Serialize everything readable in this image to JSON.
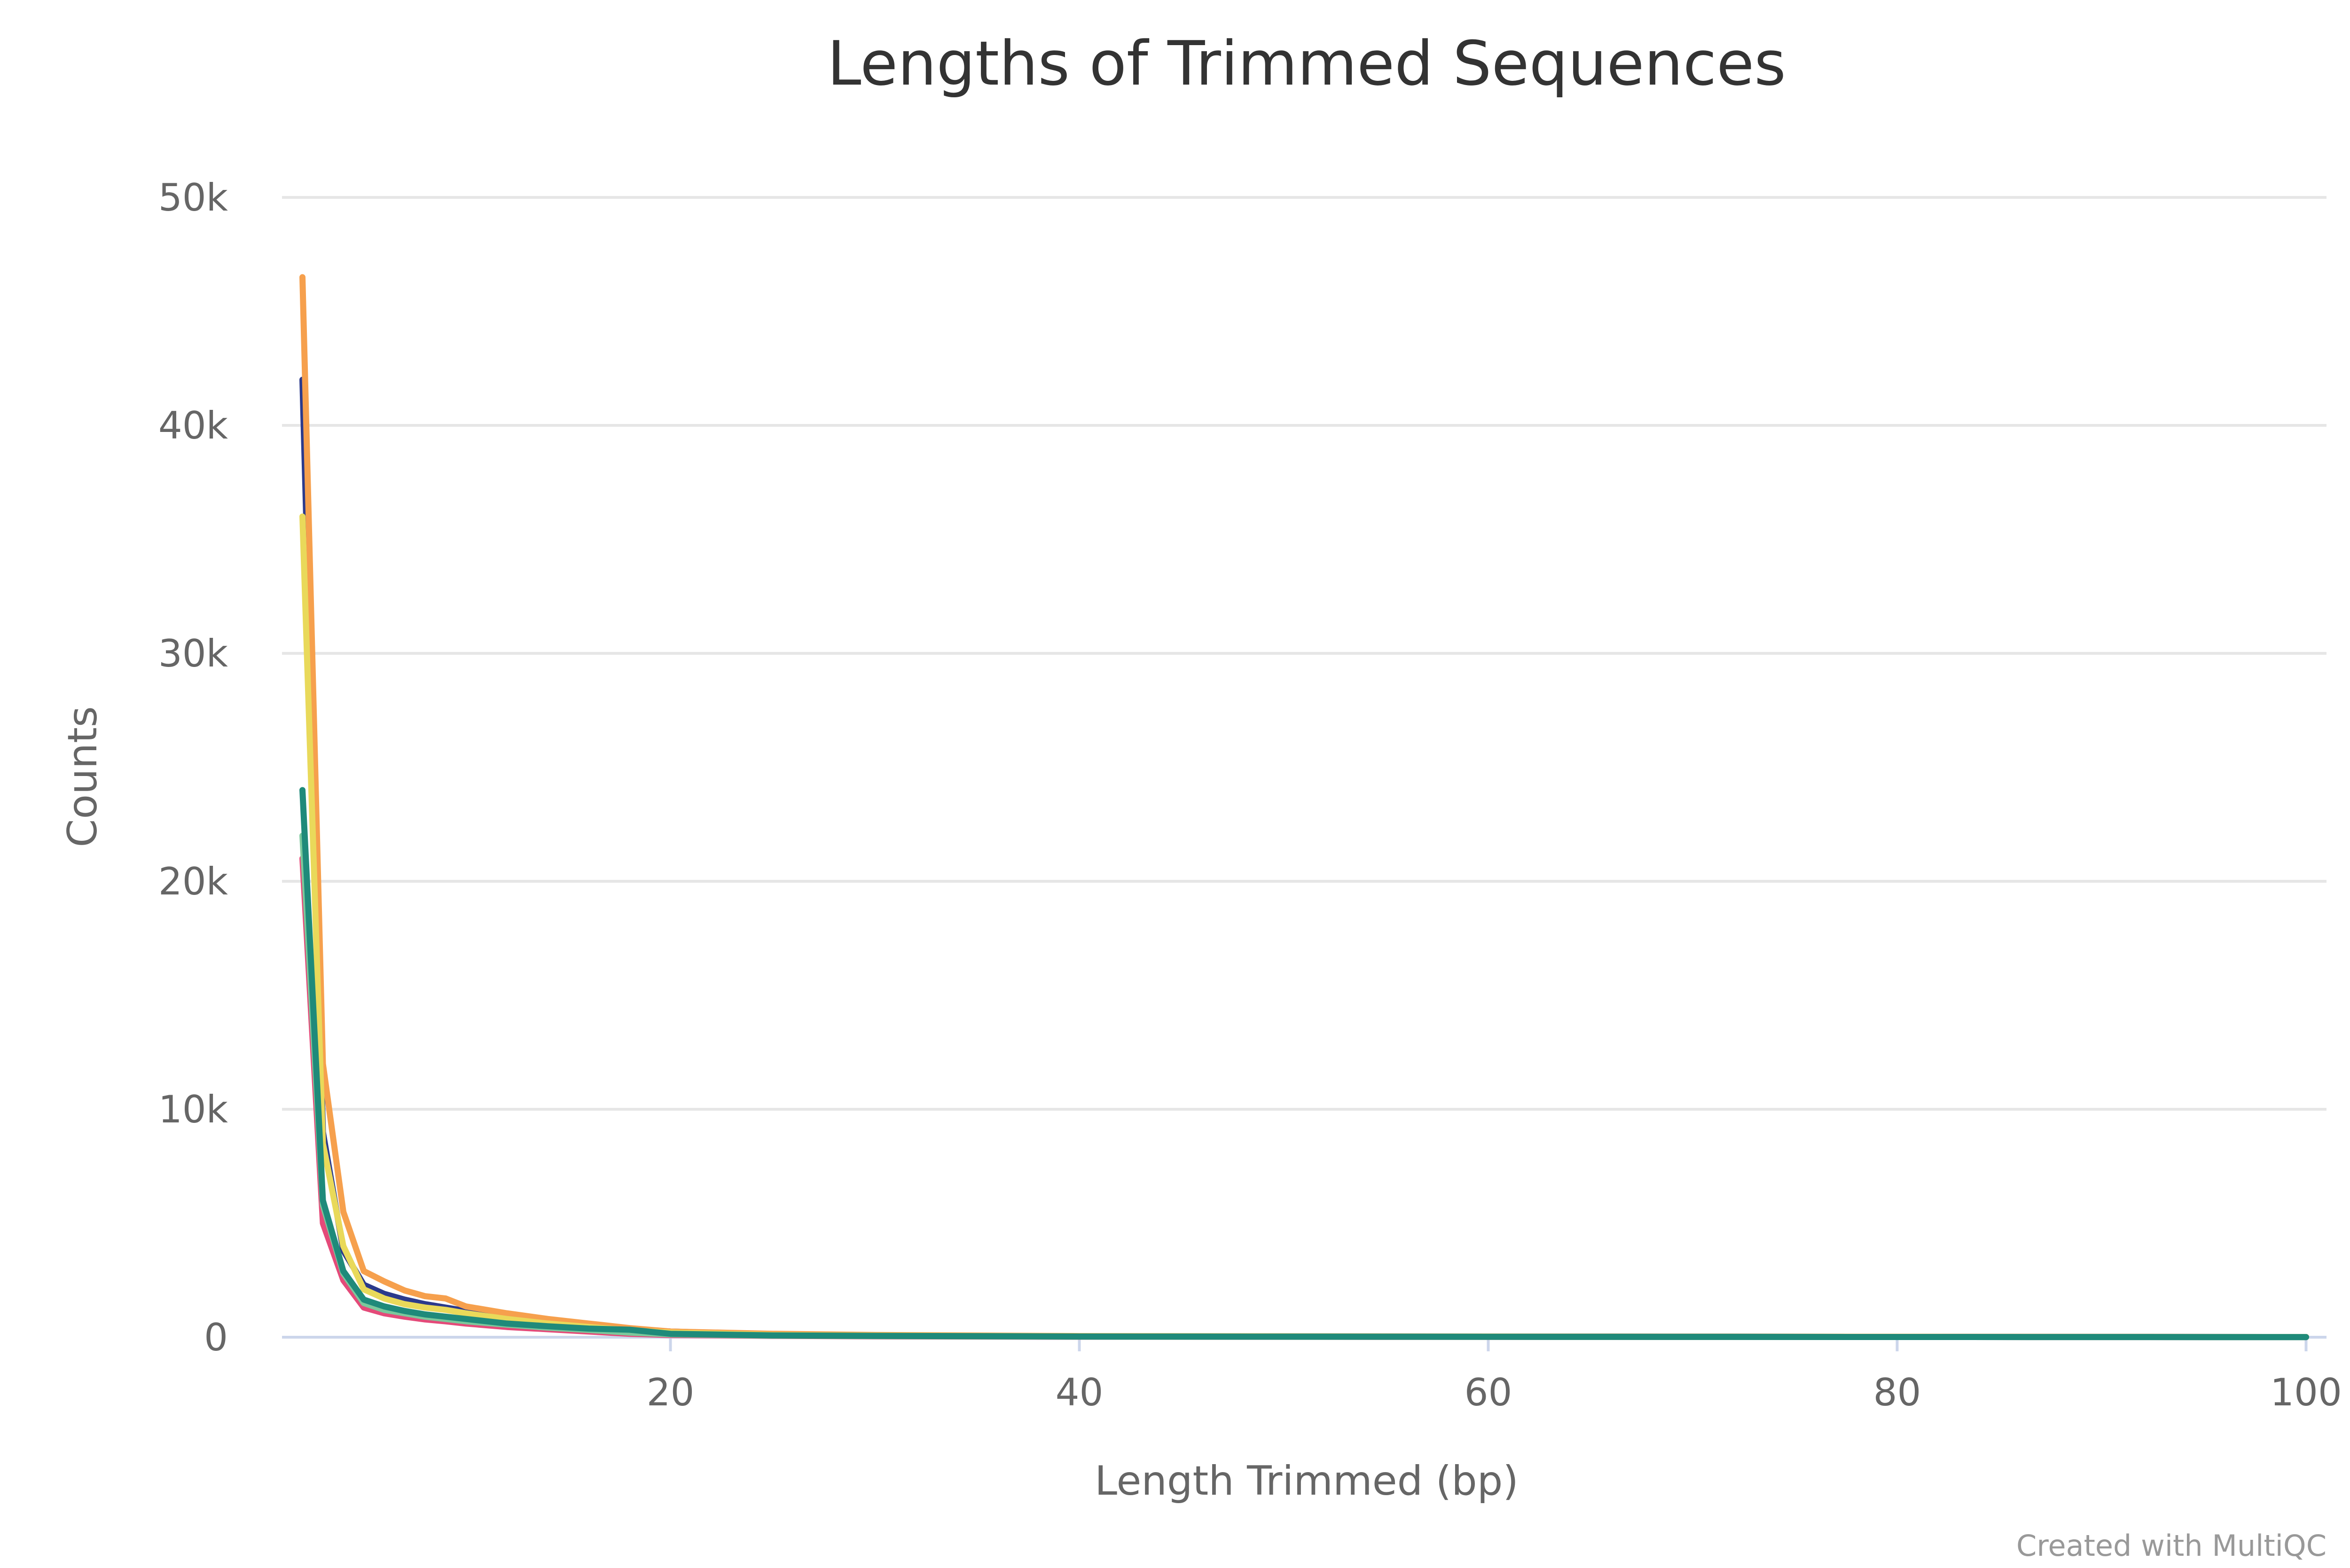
{
  "chart_data": {
    "type": "line",
    "title": "Lengths of Trimmed Sequences",
    "xlabel": "Length Trimmed (bp)",
    "ylabel": "Counts",
    "xlim": [
      1,
      101
    ],
    "ylim": [
      0,
      50000
    ],
    "x_ticks": [
      20,
      40,
      60,
      80,
      100
    ],
    "y_ticks": [
      0,
      10000,
      20000,
      30000,
      40000,
      50000
    ],
    "y_tick_labels": [
      "0",
      "10k",
      "20k",
      "30k",
      "40k",
      "50k"
    ],
    "grid": true,
    "legend": "none",
    "credit": "Created with MultiQC",
    "series": [
      {
        "color": "#2b3a8c",
        "x": [
          2,
          3,
          4,
          5,
          6,
          7,
          8,
          9,
          10,
          12,
          14,
          16,
          18,
          20,
          25,
          30,
          40,
          60,
          80,
          100
        ],
        "y": [
          42000,
          9000,
          3800,
          2300,
          1900,
          1650,
          1450,
          1300,
          1150,
          900,
          700,
          550,
          350,
          250,
          120,
          80,
          40,
          30,
          20,
          10
        ]
      },
      {
        "color": "#e44a79",
        "x": [
          2,
          3,
          4,
          5,
          6,
          7,
          8,
          9,
          10,
          12,
          14,
          16,
          18,
          20,
          25,
          30,
          40,
          60,
          80,
          100
        ],
        "y": [
          21000,
          5000,
          2500,
          1300,
          1050,
          900,
          780,
          700,
          600,
          450,
          350,
          250,
          150,
          100,
          60,
          40,
          20,
          15,
          10,
          5
        ]
      },
      {
        "color": "#f6a04d",
        "x": [
          2,
          3,
          4,
          5,
          6,
          7,
          8,
          9,
          10,
          12,
          14,
          16,
          18,
          20,
          25,
          30,
          40,
          60,
          80,
          100
        ],
        "y": [
          46500,
          12000,
          5500,
          2900,
          2450,
          2050,
          1800,
          1700,
          1350,
          1050,
          800,
          600,
          400,
          250,
          150,
          100,
          50,
          30,
          20,
          10
        ]
      },
      {
        "color": "#e9d95a",
        "x": [
          2,
          3,
          4,
          5,
          6,
          7,
          8,
          9,
          10,
          12,
          14,
          16,
          18,
          20,
          25,
          30,
          40,
          60,
          80,
          100
        ],
        "y": [
          36000,
          8500,
          4000,
          2100,
          1700,
          1450,
          1300,
          1200,
          1050,
          800,
          600,
          450,
          300,
          200,
          100,
          70,
          40,
          25,
          15,
          10
        ]
      },
      {
        "color": "#7bc89c",
        "x": [
          2,
          3,
          4,
          5,
          6,
          7,
          8,
          9,
          10,
          12,
          14,
          16,
          18,
          20,
          25,
          30,
          40,
          60,
          80,
          100
        ],
        "y": [
          22000,
          5800,
          2800,
          1500,
          1200,
          1050,
          900,
          800,
          700,
          550,
          420,
          320,
          200,
          130,
          70,
          50,
          25,
          15,
          10,
          5
        ]
      },
      {
        "color": "#1f8a7a",
        "x": [
          2,
          3,
          4,
          5,
          6,
          7,
          8,
          9,
          10,
          12,
          14,
          16,
          18,
          20,
          25,
          30,
          40,
          60,
          80,
          100
        ],
        "y": [
          24000,
          6000,
          2900,
          1650,
          1350,
          1150,
          1000,
          900,
          800,
          600,
          480,
          380,
          330,
          150,
          80,
          60,
          30,
          20,
          10,
          5
        ]
      }
    ]
  }
}
